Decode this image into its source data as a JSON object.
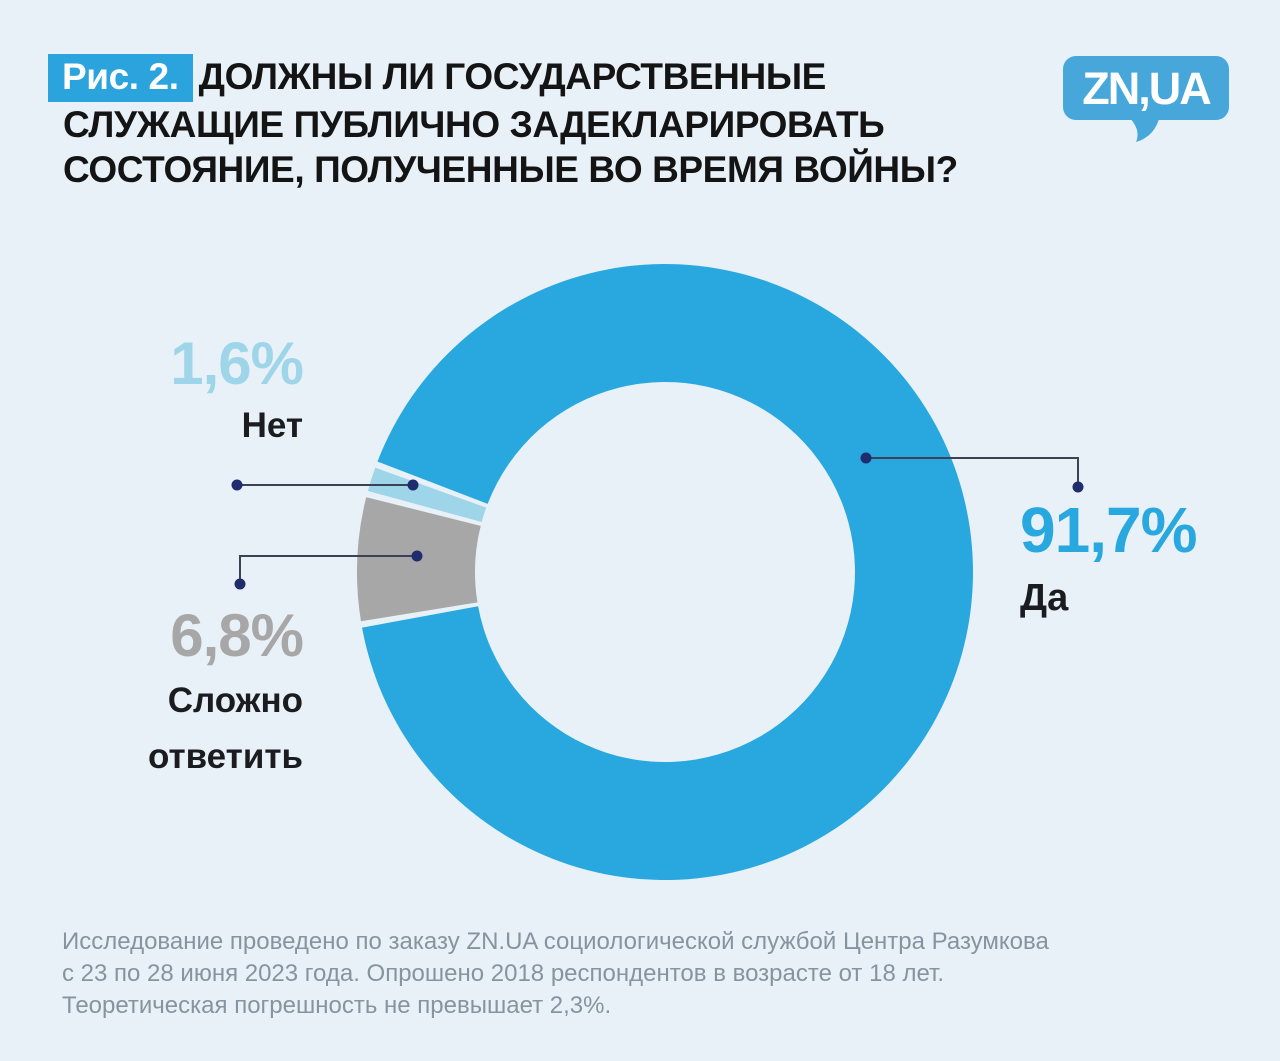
{
  "figure": {
    "badge": "Рис. 2.",
    "title_lines": [
      "ДОЛЖНЫ ЛИ ГОСУДАРСТВЕННЫЕ",
      "СЛУЖАЩИЕ ПУБЛИЧНО ЗАДЕКЛАРИРОВАТЬ",
      "СОСТОЯНИЕ, ПОЛУЧЕННЫЕ ВО ВРЕМЯ ВОЙНЫ?"
    ]
  },
  "logo": {
    "text": "ZN,UA",
    "color": "#47A7DB"
  },
  "chart_data": {
    "type": "pie",
    "subtype": "donut",
    "title": "Должны ли государственные служащие публично задекларировать состояние, полученные во время войны?",
    "legend_position": "callouts",
    "slices": [
      {
        "label": "Да",
        "label_lines": [
          "Да"
        ],
        "value": 91.7,
        "display_value": "91,7%",
        "color": "#29A8DF"
      },
      {
        "label": "Нет",
        "label_lines": [
          "Нет"
        ],
        "value": 1.6,
        "display_value": "1,6%",
        "color": "#9FD5E9"
      },
      {
        "label": "Сложно ответить",
        "label_lines": [
          "Сложно",
          "ответить"
        ],
        "value": 6.8,
        "display_value": "6,8%",
        "color": "#A7A7A7"
      }
    ]
  },
  "footnote_lines": [
    "Исследование проведено по заказу ZN.UA социологической службой Центра Разумкова",
    "с 23 по 28 июня 2023 года. Опрошено 2018 респондентов в возрасте от 18 лет.",
    "Теоретическая погрешность не превышает 2,3%."
  ],
  "colors": {
    "background": "#E8F1F8",
    "badge": "#2BA3DC",
    "title_text": "#141414",
    "footnote_text": "#8893A0",
    "leader_line": "#3A4254",
    "leader_dot": "#1F2C6E"
  }
}
